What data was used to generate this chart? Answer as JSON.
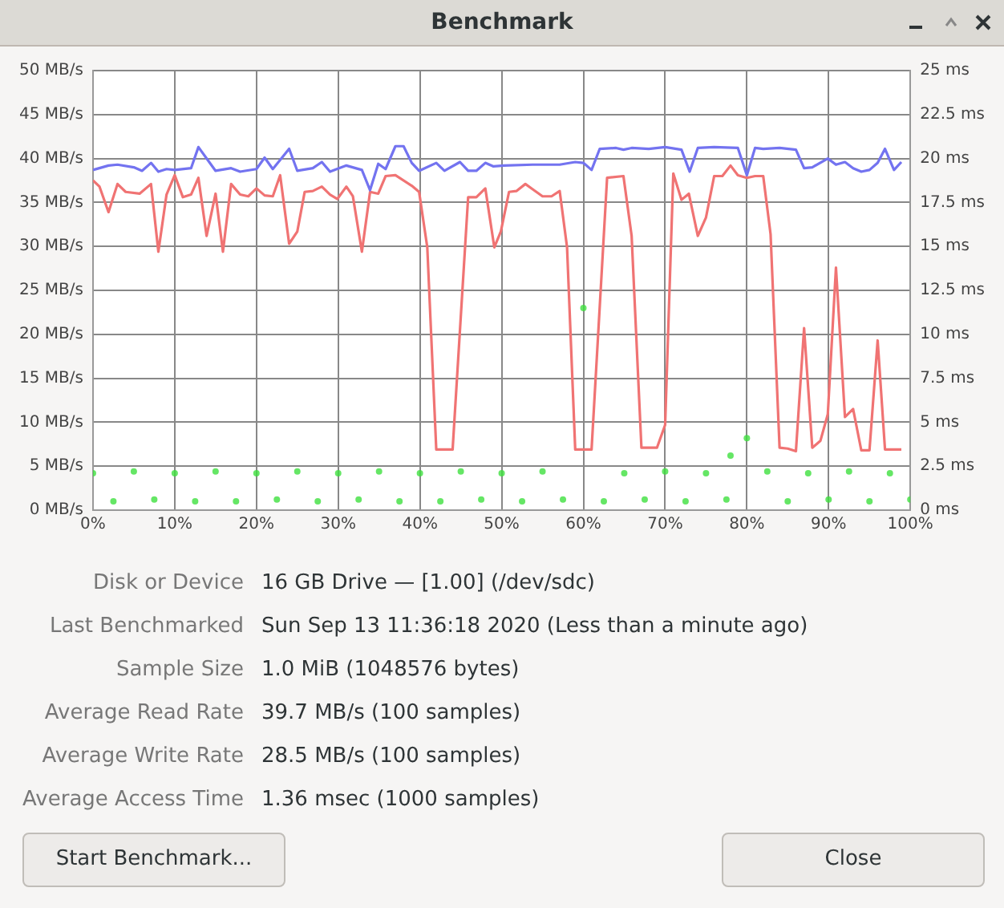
{
  "chart_data": {
    "type": "line",
    "title": "Benchmark",
    "xlim": [
      0,
      100
    ],
    "xticks": [
      {
        "value": 0,
        "label": "0%"
      },
      {
        "value": 10,
        "label": "10%"
      },
      {
        "value": 20,
        "label": "20%"
      },
      {
        "value": 30,
        "label": "30%"
      },
      {
        "value": 40,
        "label": "40%"
      },
      {
        "value": 50,
        "label": "50%"
      },
      {
        "value": 60,
        "label": "60%"
      },
      {
        "value": 70,
        "label": "70%"
      },
      {
        "value": 80,
        "label": "80%"
      },
      {
        "value": 90,
        "label": "90%"
      },
      {
        "value": 100,
        "label": "100%"
      }
    ],
    "ylim": [
      0,
      50
    ],
    "yticks": [
      {
        "value": 0,
        "label": "0 MB/s"
      },
      {
        "value": 5,
        "label": "5 MB/s"
      },
      {
        "value": 10,
        "label": "10 MB/s"
      },
      {
        "value": 15,
        "label": "15 MB/s"
      },
      {
        "value": 20,
        "label": "20 MB/s"
      },
      {
        "value": 25,
        "label": "25 MB/s"
      },
      {
        "value": 30,
        "label": "30 MB/s"
      },
      {
        "value": 35,
        "label": "35 MB/s"
      },
      {
        "value": 40,
        "label": "40 MB/s"
      },
      {
        "value": 45,
        "label": "45 MB/s"
      },
      {
        "value": 50,
        "label": "50 MB/s"
      }
    ],
    "y2lim": [
      0,
      25
    ],
    "y2ticks": [
      {
        "value": 0,
        "label": "0 ms"
      },
      {
        "value": 2.5,
        "label": "2.5 ms"
      },
      {
        "value": 5,
        "label": "5 ms"
      },
      {
        "value": 7.5,
        "label": "7.5 ms"
      },
      {
        "value": 10,
        "label": "10 ms"
      },
      {
        "value": 12.5,
        "label": "12.5 ms"
      },
      {
        "value": 15,
        "label": "15 ms"
      },
      {
        "value": 17.5,
        "label": "17.5 ms"
      },
      {
        "value": 20,
        "label": "20 ms"
      },
      {
        "value": 22.5,
        "label": "22.5 ms"
      },
      {
        "value": 25,
        "label": "25 ms"
      }
    ],
    "grid": true,
    "legend": false,
    "marker": "none",
    "line_style": "solid",
    "series": [
      {
        "type": "line",
        "color": "#7373f0",
        "x": [
          0,
          1.9,
          3,
          5,
          6,
          7.1,
          8,
          9,
          10,
          12,
          12.9,
          15,
          16.9,
          18,
          20,
          21,
          22,
          24,
          25,
          26.9,
          28,
          29,
          31,
          32.9,
          33.9,
          34.9,
          35.8,
          37,
          38,
          39,
          39.9,
          42,
          43,
          44.9,
          45.9,
          46.9,
          48,
          49,
          50.3,
          53.8,
          57.1,
          59,
          60,
          61,
          62,
          64,
          64.9,
          65.9,
          68,
          70,
          72,
          73,
          74,
          76,
          78.9,
          80,
          81,
          82,
          84,
          86,
          87,
          88,
          89.9,
          90.9,
          92,
          93,
          94,
          95,
          96,
          96.9,
          98,
          98.9
        ],
        "values": [
          38.7,
          39.2,
          39.3,
          39,
          38.6,
          39.5,
          38.5,
          38.8,
          38.7,
          38.9,
          41.3,
          38.6,
          38.9,
          38.5,
          38.8,
          40.1,
          38.8,
          41.1,
          38.6,
          38.9,
          39.6,
          38.5,
          39.2,
          38.7,
          36.4,
          39.4,
          38.8,
          41.4,
          41.4,
          39.5,
          38.6,
          39.5,
          38.6,
          39.6,
          38.6,
          38.6,
          39.5,
          39.1,
          39.2,
          39.3,
          39.3,
          39.6,
          39.5,
          38.7,
          41.1,
          41.2,
          41,
          41.2,
          41.1,
          41.3,
          41,
          38.5,
          41.2,
          41.3,
          41.2,
          38.1,
          41.2,
          41.1,
          41.2,
          41,
          38.9,
          39,
          40,
          39.3,
          39.6,
          38.9,
          38.5,
          38.7,
          39.5,
          41.1,
          38.7,
          39.6
        ]
      },
      {
        "type": "line",
        "color": "#f07373",
        "x": [
          0,
          0.8,
          1.9,
          3,
          4,
          5.7,
          7.1,
          8,
          9,
          10,
          11,
          12,
          12.9,
          13.9,
          15,
          15.9,
          16.9,
          18,
          19,
          20,
          21,
          22,
          22.9,
          24,
          25,
          25.9,
          26.9,
          28,
          29,
          29.9,
          31,
          31.8,
          32.9,
          33.9,
          34.9,
          35.8,
          37,
          39,
          39.9,
          40.9,
          42,
          44,
          45.9,
          46.9,
          48,
          49.1,
          49.9,
          50.9,
          51.8,
          52.9,
          53.8,
          55,
          56.1,
          57.1,
          58,
          59,
          61,
          62.9,
          64.9,
          65.9,
          67.1,
          69,
          70,
          71,
          72,
          72.9,
          74,
          75,
          76,
          77,
          78,
          78.9,
          80,
          81,
          82,
          82.9,
          84,
          85,
          86,
          87,
          88,
          89,
          89.9,
          90.9,
          92,
          93,
          94,
          95,
          96,
          96.9,
          98.9
        ],
        "values": [
          37.5,
          36.8,
          33.9,
          37.1,
          36.2,
          36,
          37.1,
          29.4,
          35.9,
          38.1,
          35.6,
          35.9,
          37.8,
          31.2,
          36,
          29.4,
          37.1,
          35.9,
          35.7,
          36.6,
          35.8,
          35.7,
          38.1,
          30.3,
          31.7,
          36.2,
          36.3,
          36.8,
          35.9,
          35.4,
          36.8,
          35.7,
          29.4,
          36.2,
          36,
          38,
          38.1,
          36.9,
          36.2,
          29.9,
          6.9,
          6.9,
          35.6,
          35.6,
          36.6,
          29.9,
          31.7,
          36.2,
          36.3,
          37.1,
          36.5,
          35.7,
          35.7,
          36.3,
          29.9,
          6.9,
          6.9,
          37.8,
          38,
          31.2,
          7.1,
          7.1,
          9.7,
          38.3,
          35.3,
          36,
          31.2,
          33.3,
          38,
          38,
          39.2,
          38.1,
          37.8,
          38,
          38,
          31.4,
          7.1,
          7,
          6.7,
          20.7,
          7.1,
          7.9,
          10.9,
          27.6,
          10.6,
          11.5,
          6.8,
          6.8,
          19.3,
          6.9,
          6.9
        ]
      },
      {
        "type": "scatter",
        "axis": "y2",
        "color": "#3ee03e",
        "marker": "circle",
        "x": [
          0,
          2.5,
          5,
          7.5,
          10,
          12.5,
          15,
          17.5,
          20,
          22.5,
          25,
          27.5,
          30,
          32.5,
          35,
          37.5,
          40,
          42.5,
          45,
          47.5,
          50,
          52.5,
          55,
          57.5,
          60,
          62.5,
          65,
          67.5,
          70,
          72.5,
          75,
          77.5,
          78,
          80,
          82.5,
          85,
          87.5,
          90,
          92.5,
          95,
          97.5,
          100
        ],
        "values": [
          2.1,
          0.5,
          2.2,
          0.6,
          2.1,
          0.5,
          2.2,
          0.5,
          2.1,
          0.6,
          2.2,
          0.5,
          2.1,
          0.6,
          2.2,
          0.5,
          2.1,
          0.5,
          2.2,
          0.6,
          2.1,
          0.5,
          2.2,
          0.6,
          11.5,
          0.5,
          2.1,
          0.6,
          2.2,
          0.5,
          2.1,
          0.6,
          3.1,
          4.1,
          2.2,
          0.5,
          2.1,
          0.6,
          2.2,
          0.5,
          2.1,
          0.6
        ]
      }
    ],
    "annotations": [
      "Disk or Device",
      "16 GB Drive — [1.00] (/dev/sdc)",
      "Last Benchmarked",
      "Sun Sep 13 11:36:18 2020 (Less than a minute ago)",
      "Sample Size",
      "1.0 MiB (1048576 bytes)",
      "Average Read Rate",
      "39.7 MB/s (100 samples)",
      "Average Write Rate",
      "28.5 MB/s (100 samples)",
      "Average Access Time",
      "1.36 msec (1000 samples)",
      "Start Benchmark...",
      "Close"
    ]
  }
}
